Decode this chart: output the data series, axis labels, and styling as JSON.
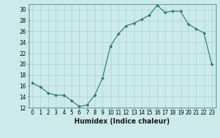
{
  "x": [
    0,
    1,
    2,
    3,
    4,
    5,
    6,
    7,
    8,
    9,
    10,
    11,
    12,
    13,
    14,
    15,
    16,
    17,
    18,
    19,
    20,
    21,
    22,
    23
  ],
  "y": [
    16.5,
    15.8,
    14.7,
    14.3,
    14.3,
    13.3,
    12.2,
    12.5,
    14.3,
    17.5,
    23.3,
    25.5,
    27.0,
    27.5,
    28.2,
    29.0,
    30.8,
    29.5,
    29.7,
    29.7,
    27.3,
    26.5,
    25.7,
    20.0
  ],
  "line_color": "#2d7d6e",
  "marker": "D",
  "marker_size": 2.0,
  "bg_color": "#cdeaea",
  "grid_color": "#aed4d4",
  "xlabel": "Humidex (Indice chaleur)",
  "ylim": [
    12,
    31
  ],
  "xlim": [
    -0.5,
    23.5
  ],
  "yticks": [
    12,
    14,
    16,
    18,
    20,
    22,
    24,
    26,
    28,
    30
  ],
  "xticks": [
    0,
    1,
    2,
    3,
    4,
    5,
    6,
    7,
    8,
    9,
    10,
    11,
    12,
    13,
    14,
    15,
    16,
    17,
    18,
    19,
    20,
    21,
    22,
    23
  ],
  "tick_fontsize": 5.5,
  "xlabel_fontsize": 7.0,
  "label_color": "#1a1a1a",
  "spine_color": "#5a9a9a"
}
